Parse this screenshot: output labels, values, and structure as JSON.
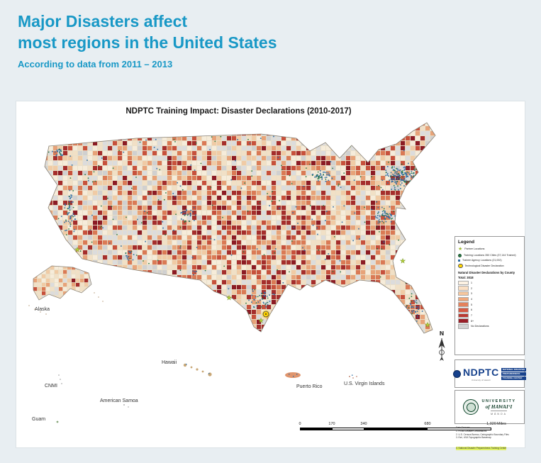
{
  "page": {
    "title_line1": "Major Disasters affect",
    "title_line2": "most regions in the United States",
    "subtitle": "According to data from 2011 – 2013",
    "accent_color": "#1898c6",
    "background_color": "#e8eef2"
  },
  "map": {
    "title": "NDPTC Training Impact: Disaster Declarations (2010-2017)",
    "north_label": "N",
    "labels": {
      "alaska": "Alaska",
      "hawaii": "Hawaii",
      "cnmi": "CNMI",
      "american_samoa": "American Samoa",
      "guam": "Guam",
      "puerto_rico": "Puerto Rico",
      "virgin_islands": "U.S. Virgin Islands"
    },
    "legend": {
      "title": "Legend",
      "items": [
        {
          "label": "Partner Locations"
        },
        {
          "label": "Training Locations 350 Cities (37,144 Trained)"
        },
        {
          "label": "Trainee Agency Locations (21,002)"
        },
        {
          "label": "Technological Disaster Declaration"
        }
      ],
      "ramp_title": "Natural Disaster Declarations by County",
      "ramp_total": "Total: 3018",
      "ramp_labels": [
        "1",
        "2",
        "3",
        "4",
        "5",
        "6",
        "7",
        "8+"
      ],
      "ramp_colors": [
        "#fdf2e3",
        "#fbe0c4",
        "#f6c79e",
        "#efa87c",
        "#e4815c",
        "#d65a44",
        "#bb3a33",
        "#9a1f28"
      ],
      "no_data_label": "No Declarations",
      "no_data_color": "#d2d2d2"
    },
    "scalebar": {
      "ticks": [
        "0",
        "170",
        "340",
        "680",
        "1,020"
      ],
      "unit": "Miles"
    },
    "sources": [
      "Data Sources:",
      "1. FEMA Disaster Declarations",
      "2. U.S. Census Bureau, Cartographic Boundary Files",
      "3. Esri, USA Topographic Basemap",
      "4. National Disaster Preparedness Training Center"
    ],
    "logos": {
      "ndptc": {
        "acronym": "NDPTC",
        "lines": [
          "NATIONAL DISASTER",
          "PREPAREDNESS",
          "TRAINING CENTER"
        ],
        "sub": "University of Hawai‘i"
      },
      "uh": {
        "line1": "UNIVERSITY",
        "line2": "of HAWAI‘I",
        "line3": "MĀNOA"
      }
    }
  },
  "palette": {
    "base": "#e9dfc9",
    "counties": [
      {
        "c": "#f6ecda",
        "w": 0.26
      },
      {
        "c": "#f1e0c6",
        "w": 0.12
      },
      {
        "c": "#dcdcdc",
        "w": 0.16
      },
      {
        "c": "#f0cba5",
        "w": 0.12
      },
      {
        "c": "#e7a379",
        "w": 0.1
      },
      {
        "c": "#da7a55",
        "w": 0.09
      },
      {
        "c": "#c7513c",
        "w": 0.08
      },
      {
        "c": "#a52e2c",
        "w": 0.05
      },
      {
        "c": "#8c1b24",
        "w": 0.02
      }
    ],
    "trainee_dot": "#2e6da4",
    "training_dot": "#2c7a45",
    "star": "#b9d23c",
    "tech": "#ffd400"
  }
}
